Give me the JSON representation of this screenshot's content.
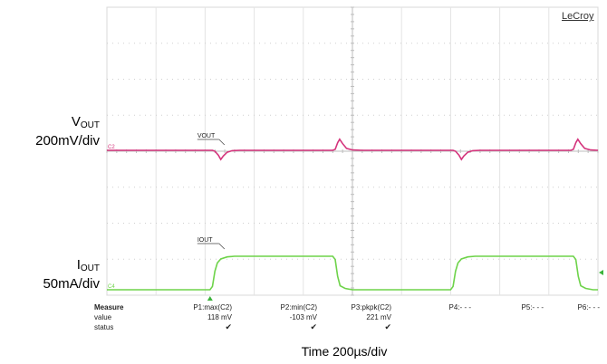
{
  "chart_data": {
    "type": "line",
    "brand": "LeCroy",
    "xlabel": "Time 200µs/div",
    "x_divisions": 10,
    "y_divisions": 8,
    "series": [
      {
        "name": "VOUT",
        "label_main": "V",
        "label_sub": "OUT",
        "scale": "200mV/div",
        "channel": "C2",
        "color": "#d4347c",
        "baseline_div": 2.9,
        "points_div": [
          [
            0.0,
            2.9
          ],
          [
            2.15,
            2.9
          ],
          [
            2.2,
            2.85
          ],
          [
            2.27,
            2.65
          ],
          [
            2.32,
            2.42
          ],
          [
            2.37,
            2.6
          ],
          [
            2.45,
            2.8
          ],
          [
            2.55,
            2.88
          ],
          [
            2.7,
            2.9
          ],
          [
            4.6,
            2.9
          ],
          [
            4.65,
            2.95
          ],
          [
            4.7,
            3.3
          ],
          [
            4.74,
            3.48
          ],
          [
            4.8,
            3.25
          ],
          [
            4.88,
            3.0
          ],
          [
            5.0,
            2.92
          ],
          [
            5.2,
            2.9
          ],
          [
            7.05,
            2.9
          ],
          [
            7.1,
            2.85
          ],
          [
            7.17,
            2.65
          ],
          [
            7.22,
            2.42
          ],
          [
            7.27,
            2.6
          ],
          [
            7.35,
            2.8
          ],
          [
            7.45,
            2.88
          ],
          [
            7.6,
            2.9
          ],
          [
            9.45,
            2.9
          ],
          [
            9.5,
            2.95
          ],
          [
            9.55,
            3.3
          ],
          [
            9.59,
            3.48
          ],
          [
            9.65,
            3.25
          ],
          [
            9.73,
            3.0
          ],
          [
            9.85,
            2.92
          ],
          [
            10.0,
            2.9
          ]
        ]
      },
      {
        "name": "IOUT",
        "label_main": "I",
        "label_sub": "OUT",
        "scale": "50mA/div",
        "channel": "C4",
        "color": "#6ed34a",
        "baseline_div": 0.0,
        "points_div": [
          [
            0.0,
            0.0
          ],
          [
            2.1,
            0.0
          ],
          [
            2.15,
            0.1
          ],
          [
            2.2,
            0.55
          ],
          [
            2.25,
            0.8
          ],
          [
            2.32,
            0.92
          ],
          [
            2.45,
            0.98
          ],
          [
            2.6,
            1.0
          ],
          [
            4.6,
            1.0
          ],
          [
            4.65,
            0.9
          ],
          [
            4.7,
            0.4
          ],
          [
            4.75,
            0.12
          ],
          [
            4.85,
            0.04
          ],
          [
            5.0,
            0.0
          ],
          [
            7.0,
            0.0
          ],
          [
            7.05,
            0.1
          ],
          [
            7.1,
            0.55
          ],
          [
            7.15,
            0.8
          ],
          [
            7.22,
            0.92
          ],
          [
            7.35,
            0.98
          ],
          [
            7.5,
            1.0
          ],
          [
            9.5,
            1.0
          ],
          [
            9.55,
            0.9
          ],
          [
            9.6,
            0.4
          ],
          [
            9.65,
            0.12
          ],
          [
            9.75,
            0.04
          ],
          [
            9.9,
            0.0
          ],
          [
            10.0,
            0.0
          ]
        ]
      }
    ],
    "measure": {
      "header": "Measure",
      "row_labels": [
        "value",
        "status"
      ],
      "params": [
        {
          "name": "P1:max(C2)",
          "value": "118 mV",
          "status": "✔"
        },
        {
          "name": "P2:min(C2)",
          "value": "-103 mV",
          "status": "✔"
        },
        {
          "name": "P3:pkpk(C2)",
          "value": "221 mV",
          "status": "✔"
        },
        {
          "name": "P4:- - -",
          "value": "",
          "status": ""
        },
        {
          "name": "P5:- - -",
          "value": "",
          "status": ""
        },
        {
          "name": "P6:- - -",
          "value": "",
          "status": ""
        }
      ]
    }
  }
}
